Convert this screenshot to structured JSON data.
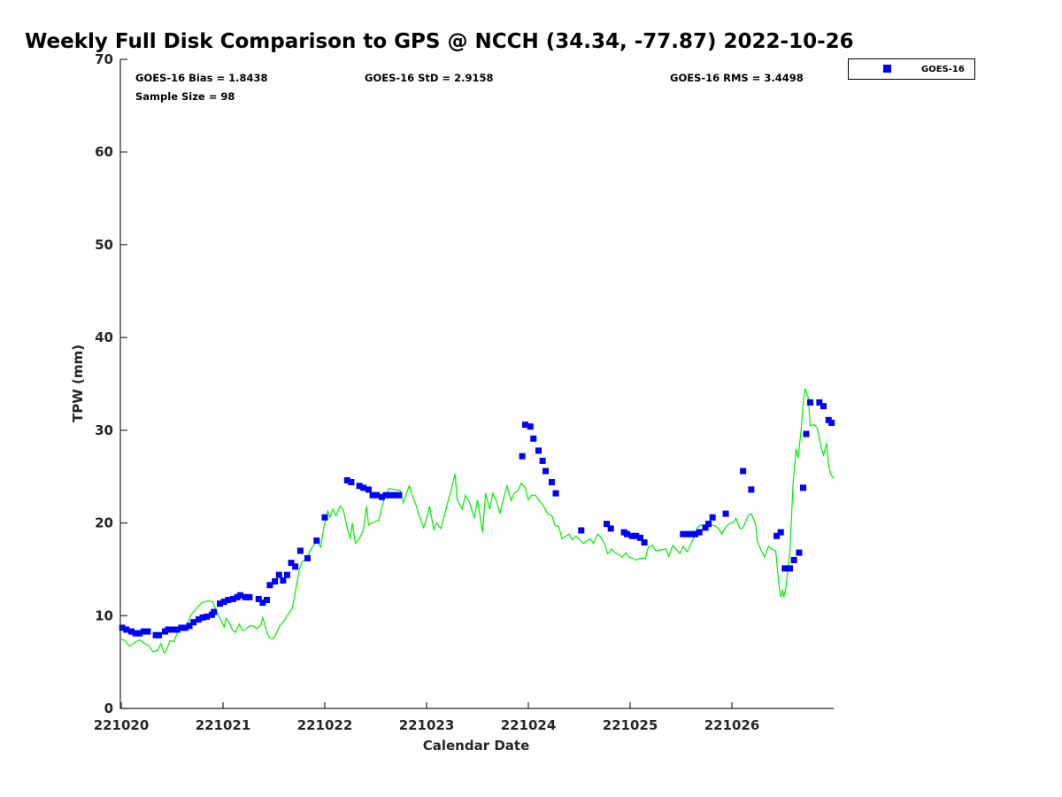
{
  "chart_data": {
    "type": "scatter",
    "title": "Weekly Full Disk Comparison to GPS @ NCCH (34.34, -77.87) 2022-10-26",
    "xlabel": "Calendar Date",
    "ylabel": "TPW (mm)",
    "xlim": [
      0,
      7
    ],
    "ylim": [
      0,
      70
    ],
    "x_unit": "days since 221020",
    "xticks": [
      0,
      1,
      2,
      3,
      4,
      5,
      6
    ],
    "xtick_labels": [
      "221020",
      "221021",
      "221022",
      "221023",
      "221024",
      "221025",
      "221026"
    ],
    "yticks": [
      0,
      10,
      20,
      30,
      40,
      50,
      60,
      70
    ],
    "ytick_labels": [
      "0",
      "10",
      "20",
      "30",
      "40",
      "50",
      "60",
      "70"
    ],
    "grid": false,
    "legend": {
      "placement": "top-right",
      "entries": [
        "GOES-16"
      ]
    },
    "annotations": {
      "bias": "GOES-16 Bias = 1.8438",
      "std": "GOES-16 StD = 2.9158",
      "rms": "GOES-16 RMS = 3.4498",
      "sample": "Sample Size = 98"
    },
    "colors": {
      "goes": "#0000ff",
      "gps": "#00ee00"
    },
    "series": [
      {
        "name": "GOES-16",
        "kind": "scatter",
        "points": [
          [
            0.01,
            8.7
          ],
          [
            0.05,
            8.5
          ],
          [
            0.1,
            8.3
          ],
          [
            0.14,
            8.1
          ],
          [
            0.18,
            8.1
          ],
          [
            0.22,
            8.3
          ],
          [
            0.26,
            8.3
          ],
          [
            0.34,
            7.9
          ],
          [
            0.37,
            7.9
          ],
          [
            0.43,
            8.3
          ],
          [
            0.46,
            8.5
          ],
          [
            0.5,
            8.5
          ],
          [
            0.55,
            8.5
          ],
          [
            0.59,
            8.7
          ],
          [
            0.63,
            8.7
          ],
          [
            0.67,
            8.9
          ],
          [
            0.71,
            9.3
          ],
          [
            0.76,
            9.6
          ],
          [
            0.8,
            9.8
          ],
          [
            0.84,
            9.9
          ],
          [
            0.89,
            10.1
          ],
          [
            0.91,
            10.4
          ],
          [
            0.97,
            11.3
          ],
          [
            1.01,
            11.5
          ],
          [
            1.05,
            11.7
          ],
          [
            1.1,
            11.8
          ],
          [
            1.14,
            12.0
          ],
          [
            1.17,
            12.2
          ],
          [
            1.22,
            12.0
          ],
          [
            1.26,
            12.0
          ],
          [
            1.35,
            11.8
          ],
          [
            1.39,
            11.4
          ],
          [
            1.43,
            11.7
          ],
          [
            1.46,
            13.3
          ],
          [
            1.51,
            13.7
          ],
          [
            1.55,
            14.4
          ],
          [
            1.59,
            13.8
          ],
          [
            1.63,
            14.4
          ],
          [
            1.67,
            15.7
          ],
          [
            1.71,
            15.3
          ],
          [
            1.76,
            17.0
          ],
          [
            1.83,
            16.2
          ],
          [
            1.92,
            18.1
          ],
          [
            2.0,
            20.6
          ],
          [
            2.22,
            24.6
          ],
          [
            2.26,
            24.4
          ],
          [
            2.34,
            24.0
          ],
          [
            2.38,
            23.8
          ],
          [
            2.43,
            23.6
          ],
          [
            2.47,
            23.0
          ],
          [
            2.51,
            23.0
          ],
          [
            2.56,
            22.8
          ],
          [
            2.6,
            23.0
          ],
          [
            2.64,
            23.0
          ],
          [
            2.69,
            23.0
          ],
          [
            2.73,
            23.0
          ],
          [
            3.94,
            27.2
          ],
          [
            3.97,
            30.6
          ],
          [
            4.02,
            30.4
          ],
          [
            4.05,
            29.1
          ],
          [
            4.1,
            27.8
          ],
          [
            4.14,
            26.7
          ],
          [
            4.17,
            25.6
          ],
          [
            4.23,
            24.4
          ],
          [
            4.27,
            23.2
          ],
          [
            4.52,
            19.2
          ],
          [
            4.77,
            19.9
          ],
          [
            4.81,
            19.4
          ],
          [
            4.94,
            19.0
          ],
          [
            4.97,
            18.8
          ],
          [
            5.02,
            18.6
          ],
          [
            5.06,
            18.6
          ],
          [
            5.1,
            18.4
          ],
          [
            5.14,
            17.9
          ],
          [
            5.52,
            18.8
          ],
          [
            5.57,
            18.8
          ],
          [
            5.6,
            18.8
          ],
          [
            5.64,
            18.8
          ],
          [
            5.68,
            19.0
          ],
          [
            5.74,
            19.5
          ],
          [
            5.77,
            19.9
          ],
          [
            5.81,
            20.6
          ],
          [
            5.94,
            21.0
          ],
          [
            6.11,
            25.6
          ],
          [
            6.19,
            23.6
          ],
          [
            6.44,
            18.6
          ],
          [
            6.48,
            19.0
          ],
          [
            6.52,
            15.1
          ],
          [
            6.57,
            15.1
          ],
          [
            6.61,
            16.0
          ],
          [
            6.66,
            16.8
          ],
          [
            6.7,
            23.8
          ],
          [
            6.73,
            29.6
          ],
          [
            6.77,
            33.0
          ],
          [
            6.86,
            33.0
          ],
          [
            6.9,
            32.6
          ],
          [
            6.95,
            31.1
          ],
          [
            6.98,
            30.8
          ]
        ]
      },
      {
        "name": "GPS",
        "kind": "line",
        "points": [
          [
            0,
            7.5
          ],
          [
            0.04,
            7.3
          ],
          [
            0.08,
            6.7
          ],
          [
            0.13,
            7.1
          ],
          [
            0.18,
            7.4
          ],
          [
            0.23,
            7.0
          ],
          [
            0.27,
            6.8
          ],
          [
            0.31,
            6.1
          ],
          [
            0.36,
            6.3
          ],
          [
            0.39,
            7.0
          ],
          [
            0.42,
            6.0
          ],
          [
            0.44,
            6.2
          ],
          [
            0.48,
            7.3
          ],
          [
            0.52,
            7.2
          ],
          [
            0.57,
            8.8
          ],
          [
            0.63,
            8.6
          ],
          [
            0.68,
            10.0
          ],
          [
            0.74,
            10.8
          ],
          [
            0.79,
            11.4
          ],
          [
            0.85,
            11.6
          ],
          [
            0.9,
            11.5
          ],
          [
            0.93,
            10.6
          ],
          [
            0.98,
            9.5
          ],
          [
            1.01,
            8.8
          ],
          [
            1.03,
            9.7
          ],
          [
            1.06,
            9.3
          ],
          [
            1.09,
            8.5
          ],
          [
            1.12,
            8.2
          ],
          [
            1.16,
            9.1
          ],
          [
            1.19,
            8.4
          ],
          [
            1.23,
            8.6
          ],
          [
            1.26,
            8.9
          ],
          [
            1.3,
            8.9
          ],
          [
            1.33,
            8.6
          ],
          [
            1.37,
            9.0
          ],
          [
            1.39,
            9.8
          ],
          [
            1.42,
            8.6
          ],
          [
            1.45,
            7.7
          ],
          [
            1.49,
            7.5
          ],
          [
            1.52,
            8.0
          ],
          [
            1.56,
            9.0
          ],
          [
            1.59,
            9.3
          ],
          [
            1.63,
            10.0
          ],
          [
            1.68,
            10.8
          ],
          [
            1.71,
            12.5
          ],
          [
            1.75,
            15.0
          ],
          [
            1.78,
            15.9
          ],
          [
            1.82,
            16.0
          ],
          [
            1.85,
            16.9
          ],
          [
            1.89,
            17.6
          ],
          [
            1.92,
            18.0
          ],
          [
            1.96,
            17.4
          ],
          [
            1.99,
            19.5
          ],
          [
            2.03,
            21.3
          ],
          [
            2.05,
            20.6
          ],
          [
            2.08,
            21.5
          ],
          [
            2.11,
            20.8
          ],
          [
            2.15,
            21.8
          ],
          [
            2.18,
            21.5
          ],
          [
            2.22,
            19.5
          ],
          [
            2.25,
            18.3
          ],
          [
            2.27,
            20.0
          ],
          [
            2.3,
            17.8
          ],
          [
            2.34,
            18.3
          ],
          [
            2.38,
            19.3
          ],
          [
            2.41,
            21.8
          ],
          [
            2.43,
            19.8
          ],
          [
            2.48,
            20.1
          ],
          [
            2.53,
            20.3
          ],
          [
            2.58,
            22.5
          ],
          [
            2.63,
            23.7
          ],
          [
            2.69,
            23.6
          ],
          [
            2.74,
            23.5
          ],
          [
            2.77,
            22.2
          ],
          [
            2.83,
            24.0
          ],
          [
            2.86,
            23.0
          ],
          [
            2.9,
            21.8
          ],
          [
            2.93,
            20.7
          ],
          [
            2.97,
            19.5
          ],
          [
            3.0,
            20.5
          ],
          [
            3.03,
            21.8
          ],
          [
            3.07,
            19.3
          ],
          [
            3.1,
            20.0
          ],
          [
            3.14,
            19.4
          ],
          [
            3.17,
            20.6
          ],
          [
            3.21,
            22.3
          ],
          [
            3.24,
            23.5
          ],
          [
            3.28,
            25.3
          ],
          [
            3.3,
            22.5
          ],
          [
            3.35,
            21.5
          ],
          [
            3.38,
            23.0
          ],
          [
            3.42,
            22.3
          ],
          [
            3.47,
            20.5
          ],
          [
            3.5,
            22.5
          ],
          [
            3.55,
            19.0
          ],
          [
            3.58,
            23.2
          ],
          [
            3.62,
            21.5
          ],
          [
            3.65,
            23.2
          ],
          [
            3.69,
            22.3
          ],
          [
            3.72,
            21.0
          ],
          [
            3.76,
            22.8
          ],
          [
            3.79,
            24.0
          ],
          [
            3.83,
            22.4
          ],
          [
            3.86,
            23.2
          ],
          [
            3.9,
            23.5
          ],
          [
            3.93,
            24.3
          ],
          [
            3.97,
            23.8
          ],
          [
            4.0,
            22.5
          ],
          [
            4.03,
            23.0
          ],
          [
            4.07,
            23.0
          ],
          [
            4.1,
            22.5
          ],
          [
            4.14,
            22.0
          ],
          [
            4.19,
            21.0
          ],
          [
            4.23,
            20.8
          ],
          [
            4.26,
            19.8
          ],
          [
            4.3,
            19.6
          ],
          [
            4.33,
            18.3
          ],
          [
            4.37,
            18.6
          ],
          [
            4.4,
            18.8
          ],
          [
            4.43,
            18.2
          ],
          [
            4.47,
            18.6
          ],
          [
            4.5,
            18.3
          ],
          [
            4.54,
            17.8
          ],
          [
            4.57,
            18.0
          ],
          [
            4.61,
            18.3
          ],
          [
            4.64,
            17.8
          ],
          [
            4.68,
            18.8
          ],
          [
            4.71,
            18.5
          ],
          [
            4.75,
            17.7
          ],
          [
            4.78,
            16.7
          ],
          [
            4.82,
            17.2
          ],
          [
            4.85,
            16.8
          ],
          [
            4.89,
            16.6
          ],
          [
            4.92,
            16.3
          ],
          [
            4.96,
            16.8
          ],
          [
            4.99,
            16.3
          ],
          [
            5.03,
            16.2
          ],
          [
            5.06,
            16.0
          ],
          [
            5.1,
            16.2
          ],
          [
            5.15,
            16.2
          ],
          [
            5.18,
            17.4
          ],
          [
            5.22,
            17.6
          ],
          [
            5.25,
            17.0
          ],
          [
            5.3,
            17.1
          ],
          [
            5.35,
            17.2
          ],
          [
            5.38,
            16.4
          ],
          [
            5.42,
            17.6
          ],
          [
            5.45,
            17.2
          ],
          [
            5.49,
            16.7
          ],
          [
            5.52,
            17.5
          ],
          [
            5.56,
            16.9
          ],
          [
            5.59,
            17.6
          ],
          [
            5.63,
            18.5
          ],
          [
            5.66,
            19.5
          ],
          [
            5.7,
            19.8
          ],
          [
            5.73,
            19.6
          ],
          [
            5.77,
            20.2
          ],
          [
            5.8,
            19.8
          ],
          [
            5.83,
            19.7
          ],
          [
            5.87,
            19.4
          ],
          [
            5.9,
            18.8
          ],
          [
            5.94,
            19.6
          ],
          [
            5.97,
            19.9
          ],
          [
            6.02,
            20.1
          ],
          [
            6.04,
            20.5
          ],
          [
            6.08,
            19.4
          ],
          [
            6.11,
            19.5
          ],
          [
            6.16,
            20.8
          ],
          [
            6.19,
            21.0
          ],
          [
            6.23,
            20.0
          ],
          [
            6.25,
            18.0
          ],
          [
            6.29,
            17.0
          ],
          [
            6.32,
            16.3
          ],
          [
            6.36,
            17.5
          ],
          [
            6.39,
            17.2
          ],
          [
            6.43,
            17.0
          ],
          [
            6.44,
            16.0
          ],
          [
            6.46,
            13.5
          ],
          [
            6.48,
            12.0
          ],
          [
            6.5,
            12.8
          ],
          [
            6.51,
            12.0
          ],
          [
            6.53,
            13.0
          ],
          [
            6.57,
            17.0
          ],
          [
            6.6,
            24.0
          ],
          [
            6.63,
            28.0
          ],
          [
            6.65,
            27.0
          ],
          [
            6.68,
            30.0
          ],
          [
            6.7,
            33.0
          ],
          [
            6.72,
            34.5
          ],
          [
            6.75,
            33.5
          ],
          [
            6.77,
            30.5
          ],
          [
            6.81,
            30.6
          ],
          [
            6.84,
            30.2
          ],
          [
            6.88,
            28.0
          ],
          [
            6.9,
            27.3
          ],
          [
            6.93,
            28.6
          ],
          [
            6.95,
            26.2
          ],
          [
            6.97,
            25.3
          ],
          [
            7.0,
            24.8
          ]
        ]
      }
    ]
  }
}
